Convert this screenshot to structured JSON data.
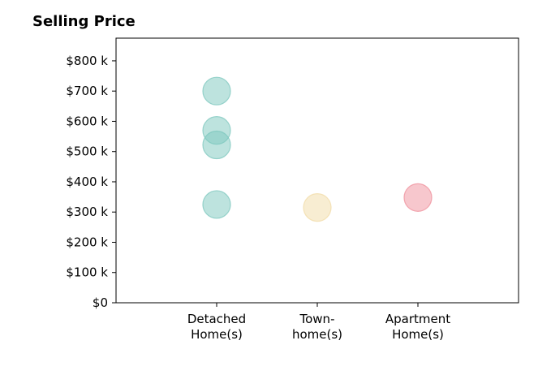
{
  "chart_data": {
    "type": "scatter",
    "title": "Selling Price",
    "xlabel": "",
    "ylabel": "",
    "categories": [
      [
        "Detached",
        "Home(s)"
      ],
      [
        "Town-",
        "home(s)"
      ],
      [
        "Apartment",
        "Home(s)"
      ]
    ],
    "category_colors": [
      "#7cc7be",
      "#f2dba6",
      "#ef8f9b"
    ],
    "points": [
      {
        "category": 0,
        "value": 700000
      },
      {
        "category": 0,
        "value": 570000
      },
      {
        "category": 0,
        "value": 522000
      },
      {
        "category": 0,
        "value": 325000
      },
      {
        "category": 1,
        "value": 315000
      },
      {
        "category": 2,
        "value": 348000
      }
    ],
    "ylim": [
      0,
      875000
    ],
    "yticks": [
      0,
      100000,
      200000,
      300000,
      400000,
      500000,
      600000,
      700000,
      800000
    ],
    "ytick_labels": [
      "$0",
      "$100 k",
      "$200 k",
      "$300 k",
      "$400 k",
      "$500 k",
      "$600 k",
      "$700 k",
      "$800 k"
    ],
    "grid": false,
    "legend": "none"
  }
}
